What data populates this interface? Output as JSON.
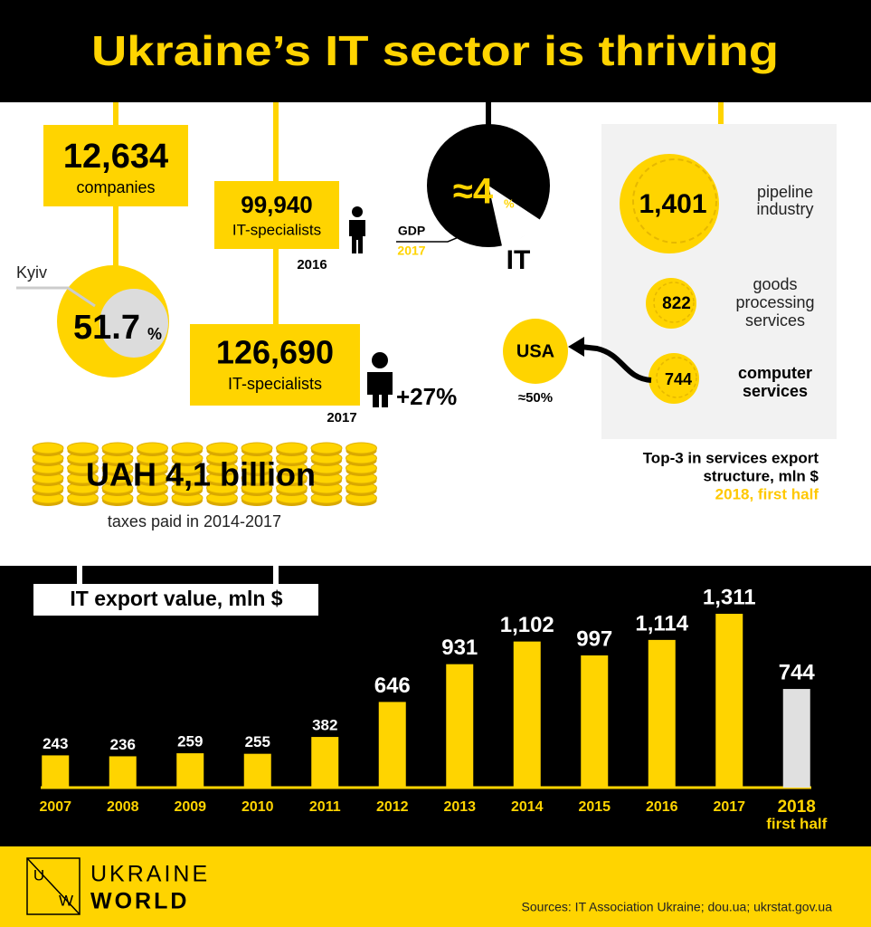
{
  "title": "Ukraine’s IT sector is thriving",
  "companies": {
    "number": "12,634",
    "label": "companies"
  },
  "kyiv": {
    "label": "Kyiv",
    "number": "51.7",
    "unit": "%"
  },
  "specialists_2016": {
    "number": "99,940",
    "label": "IT-specialists",
    "year": "2016"
  },
  "specialists_2017": {
    "number": "126,690",
    "label": "IT-specialists",
    "year": "2017",
    "growth": "+27%"
  },
  "gdp": {
    "number": "≈4",
    "unit": "%",
    "label": "GDP",
    "year": "2017",
    "sector": "IT"
  },
  "taxes": {
    "amount": "UAH 4,1 billion",
    "label": "taxes paid in 2014-2017"
  },
  "services_export": {
    "items": [
      {
        "value": "1,401",
        "label": [
          "pipeline",
          "industry"
        ]
      },
      {
        "value": "822",
        "label": [
          "goods",
          "processing",
          "services"
        ]
      },
      {
        "value": "744",
        "label": [
          "computer",
          "services"
        ]
      }
    ],
    "usa": {
      "label": "USA",
      "share": "≈50%"
    },
    "caption": [
      "Top-3 in services export",
      "structure, mln $"
    ],
    "period": "2018, first half"
  },
  "chart_data": {
    "type": "bar",
    "title": "IT export value, mln $",
    "categories": [
      "2007",
      "2008",
      "2009",
      "2010",
      "2011",
      "2012",
      "2013",
      "2014",
      "2015",
      "2016",
      "2017",
      "2018"
    ],
    "period_note": "first half",
    "values": [
      243,
      236,
      259,
      255,
      382,
      646,
      931,
      1102,
      997,
      1114,
      1311,
      744
    ],
    "value_labels": [
      "243",
      "236",
      "259",
      "255",
      "382",
      "646",
      "931",
      "1,102",
      "997",
      "1,114",
      "1,311",
      "744"
    ],
    "colors": [
      "#ffd400",
      "#ffd400",
      "#ffd400",
      "#ffd400",
      "#ffd400",
      "#ffd400",
      "#ffd400",
      "#ffd400",
      "#ffd400",
      "#ffd400",
      "#ffd400",
      "#e0e0e0"
    ],
    "ylim": [
      0,
      1400
    ]
  },
  "footer": {
    "logo_letters": [
      "U",
      "W"
    ],
    "brand": [
      "UKRAINE",
      "WORLD"
    ],
    "sources": "Sources: IT Association Ukraine; dou.ua; ukrstat.gov.ua"
  }
}
